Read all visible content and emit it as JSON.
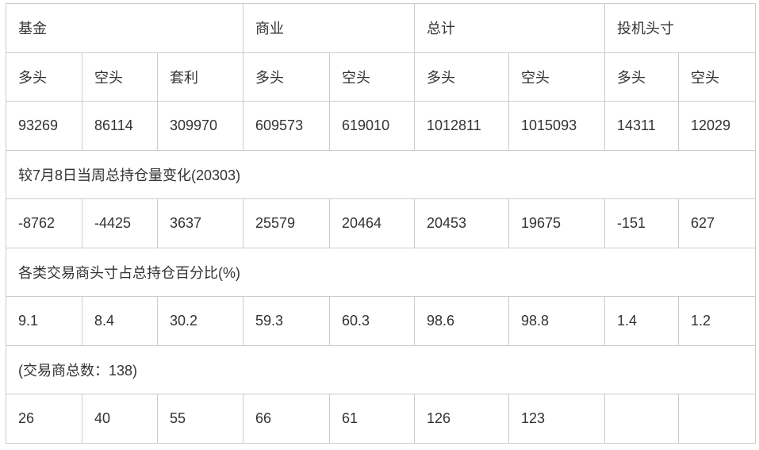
{
  "header": {
    "groups": [
      "基金",
      "商业",
      "总计",
      "投机头寸"
    ]
  },
  "subheader": [
    "多头",
    "空头",
    "套利",
    "多头",
    "空头",
    "多头",
    "空头",
    "多头",
    "空头"
  ],
  "positions": [
    "93269",
    "86114",
    "309970",
    "609573",
    "619010",
    "1012811",
    "1015093",
    "14311",
    "12029"
  ],
  "change_label": "较7月8日当周总持仓量变化(20303)",
  "changes": [
    "-8762",
    "-4425",
    "3637",
    "25579",
    "20464",
    "20453",
    "19675",
    "-151",
    "627"
  ],
  "percent_label": "各类交易商头寸占总持仓百分比(%)",
  "percents": [
    "9.1",
    "8.4",
    "30.2",
    "59.3",
    "60.3",
    "98.6",
    "98.8",
    "1.4",
    "1.2"
  ],
  "traders_label": "(交易商总数：138)",
  "traders": [
    "26",
    "40",
    "55",
    "66",
    "61",
    "126",
    "123",
    "",
    ""
  ]
}
